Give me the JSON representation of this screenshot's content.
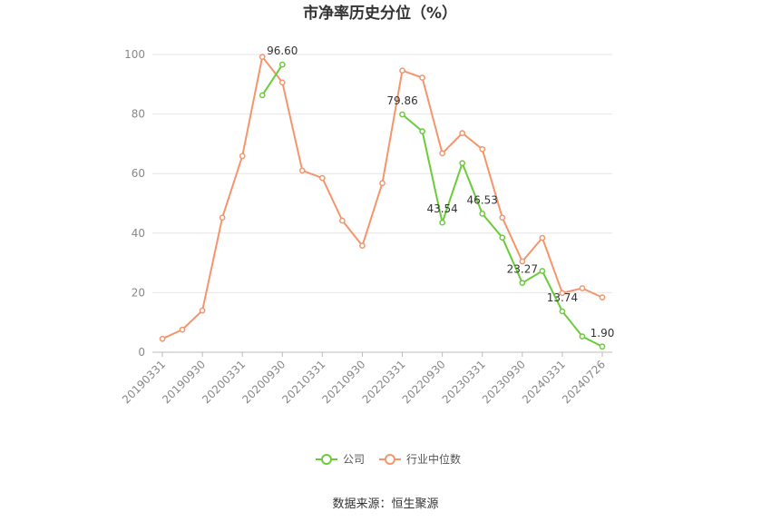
{
  "chart_data": {
    "type": "line",
    "title": "市净率历史分位（%）",
    "x": [
      "20190331",
      "20190630",
      "20190930",
      "20191231",
      "20200331",
      "20200630",
      "20200930",
      "20201231",
      "20210331",
      "20210630",
      "20210930",
      "20211231",
      "20220331",
      "20220630",
      "20220930",
      "20221231",
      "20230331",
      "20230630",
      "20230930",
      "20231231",
      "20240331",
      "20240630",
      "20240726"
    ],
    "x_tick_labels": [
      "20190331",
      "20190930",
      "20200331",
      "20200930",
      "20210331",
      "20210930",
      "20220331",
      "20220930",
      "20230331",
      "20230930",
      "20240331",
      "20240726"
    ],
    "ylim": [
      0,
      100
    ],
    "y_ticks": [
      0,
      20,
      40,
      60,
      80,
      100
    ],
    "grid": true,
    "legend_position": "bottom",
    "series": [
      {
        "name": "公司",
        "color": "#6bcb3a",
        "values": [
          null,
          null,
          null,
          null,
          null,
          86.3,
          96.6,
          null,
          null,
          null,
          null,
          null,
          79.86,
          74.2,
          43.54,
          63.5,
          46.53,
          38.5,
          23.27,
          27.3,
          13.74,
          5.3,
          1.9
        ],
        "labels": {
          "6": "96.60",
          "12": "79.86",
          "14": "43.54",
          "16": "46.53",
          "18": "23.27",
          "20": "13.74",
          "22": "1.90"
        }
      },
      {
        "name": "行业中位数",
        "color": "#f4956b",
        "values": [
          4.5,
          7.6,
          14.0,
          45.2,
          65.9,
          99.2,
          90.6,
          61.0,
          58.5,
          44.2,
          35.8,
          56.8,
          94.6,
          92.2,
          66.8,
          73.6,
          68.2,
          45.2,
          30.5,
          38.4,
          19.9,
          21.5,
          18.4
        ]
      }
    ]
  },
  "source_text": "数据来源：恒生聚源"
}
